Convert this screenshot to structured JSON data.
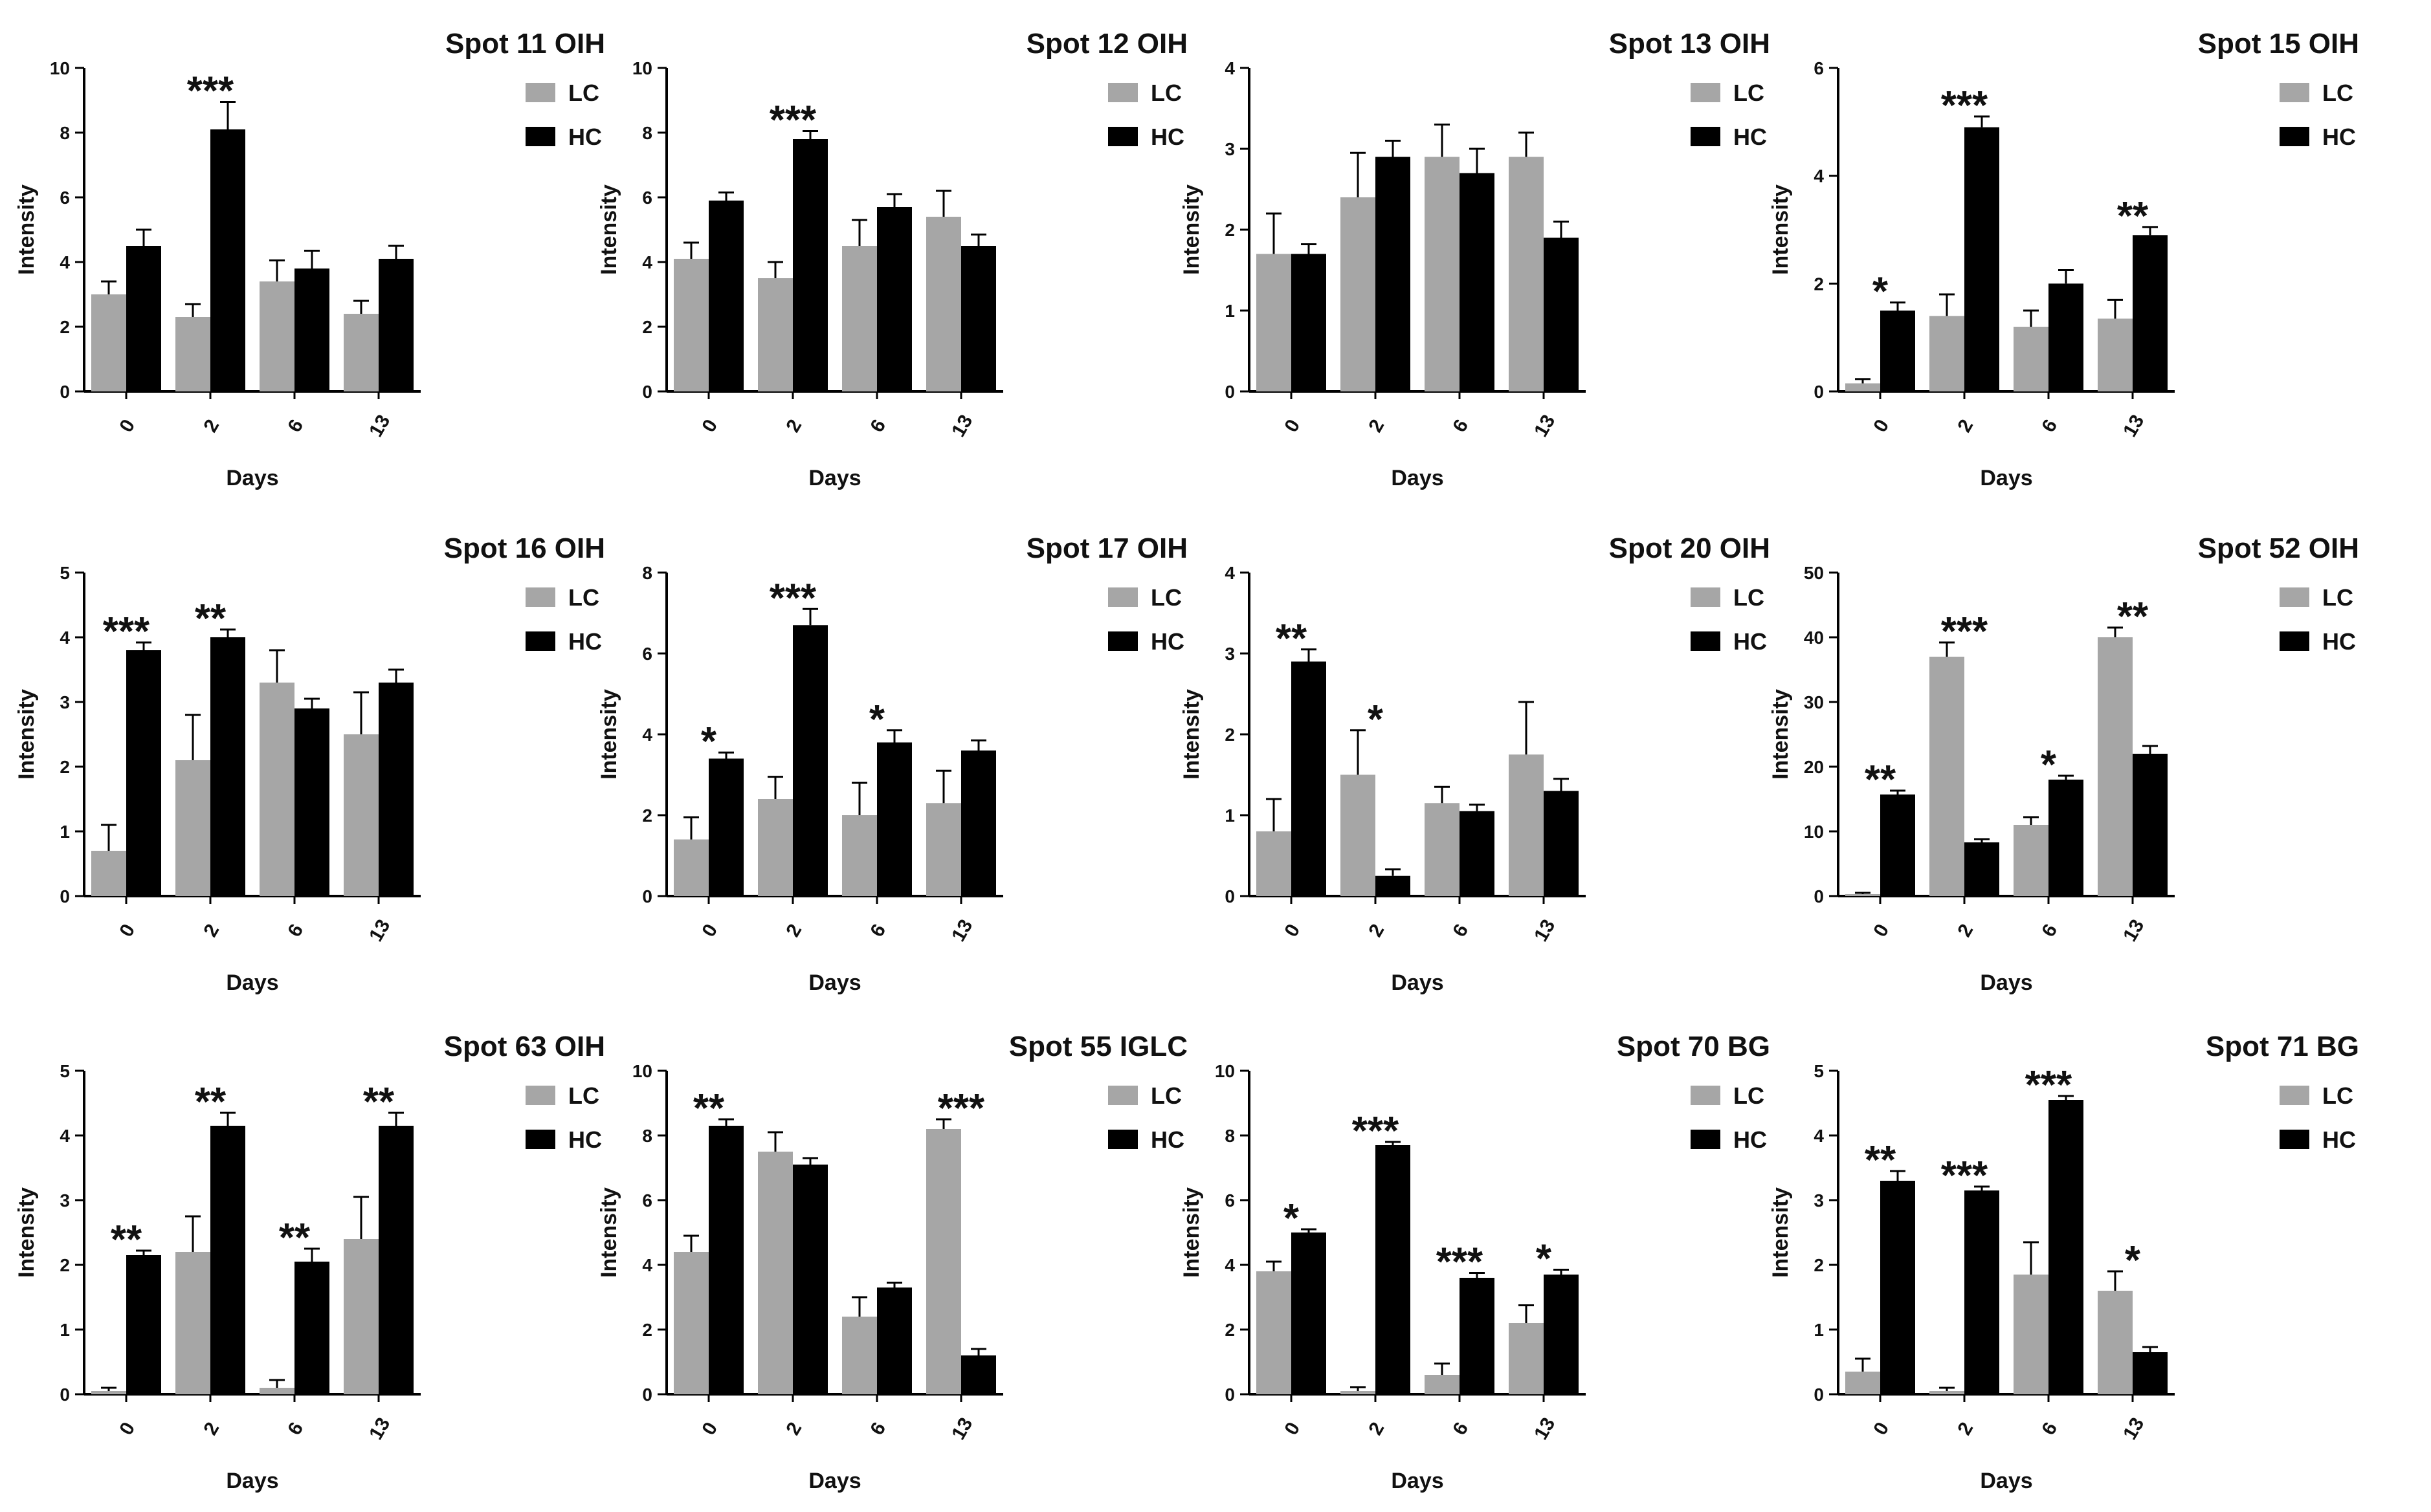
{
  "chart_data": [
    {
      "type": "bar",
      "title": "Spot 11 OIH",
      "xlabel": "Days",
      "ylabel": "Intensity",
      "categories": [
        "0",
        "2",
        "6",
        "13"
      ],
      "ylim": [
        0,
        10
      ],
      "yticks": [
        0,
        2,
        4,
        6,
        8,
        10
      ],
      "series": [
        {
          "name": "LC",
          "color": "#a6a6a6",
          "values": [
            3.0,
            2.3,
            3.4,
            2.4
          ],
          "errors": [
            0.4,
            0.4,
            0.65,
            0.4
          ]
        },
        {
          "name": "HC",
          "color": "#000000",
          "values": [
            4.5,
            8.1,
            3.8,
            4.1
          ],
          "errors": [
            0.5,
            0.85,
            0.55,
            0.4
          ]
        }
      ],
      "significance": [
        {
          "category": "2",
          "label": "***"
        }
      ]
    },
    {
      "type": "bar",
      "title": "Spot 12 OIH",
      "xlabel": "Days",
      "ylabel": "Intensity",
      "categories": [
        "0",
        "2",
        "6",
        "13"
      ],
      "ylim": [
        0,
        10
      ],
      "yticks": [
        0,
        2,
        4,
        6,
        8,
        10
      ],
      "series": [
        {
          "name": "LC",
          "color": "#a6a6a6",
          "values": [
            4.1,
            3.5,
            4.5,
            5.4
          ],
          "errors": [
            0.5,
            0.5,
            0.8,
            0.8
          ]
        },
        {
          "name": "HC",
          "color": "#000000",
          "values": [
            5.9,
            7.8,
            5.7,
            4.5
          ],
          "errors": [
            0.25,
            0.25,
            0.4,
            0.35
          ]
        }
      ],
      "significance": [
        {
          "category": "2",
          "label": "***"
        }
      ]
    },
    {
      "type": "bar",
      "title": "Spot 13 OIH",
      "xlabel": "Days",
      "ylabel": "Intensity",
      "categories": [
        "0",
        "2",
        "6",
        "13"
      ],
      "ylim": [
        0,
        4
      ],
      "yticks": [
        0,
        1,
        2,
        3,
        4
      ],
      "series": [
        {
          "name": "LC",
          "color": "#a6a6a6",
          "values": [
            1.7,
            2.4,
            2.9,
            2.9
          ],
          "errors": [
            0.5,
            0.55,
            0.4,
            0.3
          ]
        },
        {
          "name": "HC",
          "color": "#000000",
          "values": [
            1.7,
            2.9,
            2.7,
            1.9
          ],
          "errors": [
            0.12,
            0.2,
            0.3,
            0.2
          ]
        }
      ],
      "significance": []
    },
    {
      "type": "bar",
      "title": "Spot 15 OIH",
      "xlabel": "Days",
      "ylabel": "Intensity",
      "categories": [
        "0",
        "2",
        "6",
        "13"
      ],
      "ylim": [
        0,
        6
      ],
      "yticks": [
        0,
        2,
        4,
        6
      ],
      "series": [
        {
          "name": "LC",
          "color": "#a6a6a6",
          "values": [
            0.15,
            1.4,
            1.2,
            1.35
          ],
          "errors": [
            0.08,
            0.4,
            0.3,
            0.35
          ]
        },
        {
          "name": "HC",
          "color": "#000000",
          "values": [
            1.5,
            4.9,
            2.0,
            2.9
          ],
          "errors": [
            0.15,
            0.2,
            0.25,
            0.15
          ]
        }
      ],
      "significance": [
        {
          "category": "0",
          "label": "*"
        },
        {
          "category": "2",
          "label": "***"
        },
        {
          "category": "13",
          "label": "**"
        }
      ]
    },
    {
      "type": "bar",
      "title": "Spot 16 OIH",
      "xlabel": "Days",
      "ylabel": "Intensity",
      "categories": [
        "0",
        "2",
        "6",
        "13"
      ],
      "ylim": [
        0,
        5
      ],
      "yticks": [
        0,
        1,
        2,
        3,
        4,
        5
      ],
      "series": [
        {
          "name": "LC",
          "color": "#a6a6a6",
          "values": [
            0.7,
            2.1,
            3.3,
            2.5
          ],
          "errors": [
            0.4,
            0.7,
            0.5,
            0.65
          ]
        },
        {
          "name": "HC",
          "color": "#000000",
          "values": [
            3.8,
            4.0,
            2.9,
            3.3
          ],
          "errors": [
            0.12,
            0.12,
            0.15,
            0.2
          ]
        }
      ],
      "significance": [
        {
          "category": "0",
          "label": "***"
        },
        {
          "category": "2",
          "label": "**"
        }
      ]
    },
    {
      "type": "bar",
      "title": "Spot 17 OIH",
      "xlabel": "Days",
      "ylabel": "Intensity",
      "categories": [
        "0",
        "2",
        "6",
        "13"
      ],
      "ylim": [
        0,
        8
      ],
      "yticks": [
        0,
        2,
        4,
        6,
        8
      ],
      "series": [
        {
          "name": "LC",
          "color": "#a6a6a6",
          "values": [
            1.4,
            2.4,
            2.0,
            2.3
          ],
          "errors": [
            0.55,
            0.55,
            0.8,
            0.8
          ]
        },
        {
          "name": "HC",
          "color": "#000000",
          "values": [
            3.4,
            6.7,
            3.8,
            3.6
          ],
          "errors": [
            0.15,
            0.4,
            0.3,
            0.25
          ]
        }
      ],
      "significance": [
        {
          "category": "0",
          "label": "*"
        },
        {
          "category": "2",
          "label": "***"
        },
        {
          "category": "6",
          "label": "*"
        }
      ]
    },
    {
      "type": "bar",
      "title": "Spot 20 OIH",
      "xlabel": "Days",
      "ylabel": "Intensity",
      "categories": [
        "0",
        "2",
        "6",
        "13"
      ],
      "ylim": [
        0,
        4
      ],
      "yticks": [
        0,
        1,
        2,
        3,
        4
      ],
      "series": [
        {
          "name": "LC",
          "color": "#a6a6a6",
          "values": [
            0.8,
            1.5,
            1.15,
            1.75
          ],
          "errors": [
            0.4,
            0.55,
            0.2,
            0.65
          ]
        },
        {
          "name": "HC",
          "color": "#000000",
          "values": [
            2.9,
            0.25,
            1.05,
            1.3
          ],
          "errors": [
            0.15,
            0.08,
            0.08,
            0.15
          ]
        }
      ],
      "significance": [
        {
          "category": "0",
          "label": "**"
        },
        {
          "category": "2",
          "label": "*"
        }
      ]
    },
    {
      "type": "bar",
      "title": "Spot 52 OIH",
      "xlabel": "Days",
      "ylabel": "Intensity",
      "categories": [
        "0",
        "2",
        "6",
        "13"
      ],
      "ylim": [
        0,
        50
      ],
      "yticks": [
        0,
        10,
        20,
        30,
        40,
        50
      ],
      "series": [
        {
          "name": "LC",
          "color": "#a6a6a6",
          "values": [
            0.3,
            37,
            11,
            40
          ],
          "errors": [
            0.2,
            2.2,
            1.2,
            1.5
          ]
        },
        {
          "name": "HC",
          "color": "#000000",
          "values": [
            15.7,
            8.3,
            18,
            22
          ],
          "errors": [
            0.6,
            0.5,
            0.6,
            1.2
          ]
        }
      ],
      "significance": [
        {
          "category": "0",
          "label": "**"
        },
        {
          "category": "2",
          "label": "***"
        },
        {
          "category": "6",
          "label": "*"
        },
        {
          "category": "13",
          "label": "**"
        }
      ]
    },
    {
      "type": "bar",
      "title": "Spot 63 OIH",
      "xlabel": "Days",
      "ylabel": "Intensity",
      "categories": [
        "0",
        "2",
        "6",
        "13"
      ],
      "ylim": [
        0,
        5
      ],
      "yticks": [
        0,
        1,
        2,
        3,
        4,
        5
      ],
      "series": [
        {
          "name": "LC",
          "color": "#a6a6a6",
          "values": [
            0.05,
            2.2,
            0.1,
            2.4
          ],
          "errors": [
            0.05,
            0.55,
            0.12,
            0.65
          ]
        },
        {
          "name": "HC",
          "color": "#000000",
          "values": [
            2.15,
            4.15,
            2.05,
            4.15
          ],
          "errors": [
            0.07,
            0.2,
            0.2,
            0.2
          ]
        }
      ],
      "significance": [
        {
          "category": "0",
          "label": "**"
        },
        {
          "category": "2",
          "label": "**"
        },
        {
          "category": "6",
          "label": "**"
        },
        {
          "category": "13",
          "label": "**"
        }
      ]
    },
    {
      "type": "bar",
      "title": "Spot 55 IGLC",
      "xlabel": "Days",
      "ylabel": "Intensity",
      "categories": [
        "0",
        "2",
        "6",
        "13"
      ],
      "ylim": [
        0,
        10
      ],
      "yticks": [
        0,
        2,
        4,
        6,
        8,
        10
      ],
      "series": [
        {
          "name": "LC",
          "color": "#a6a6a6",
          "values": [
            4.4,
            7.5,
            2.4,
            8.2
          ],
          "errors": [
            0.5,
            0.6,
            0.6,
            0.3
          ]
        },
        {
          "name": "HC",
          "color": "#000000",
          "values": [
            8.3,
            7.1,
            3.3,
            1.2
          ],
          "errors": [
            0.2,
            0.2,
            0.15,
            0.2
          ]
        }
      ],
      "significance": [
        {
          "category": "0",
          "label": "**"
        },
        {
          "category": "13",
          "label": "***"
        }
      ]
    },
    {
      "type": "bar",
      "title": "Spot 70 BG",
      "xlabel": "Days",
      "ylabel": "Intensity",
      "categories": [
        "0",
        "2",
        "6",
        "13"
      ],
      "ylim": [
        0,
        10
      ],
      "yticks": [
        0,
        2,
        4,
        6,
        8,
        10
      ],
      "series": [
        {
          "name": "LC",
          "color": "#a6a6a6",
          "values": [
            3.8,
            0.1,
            0.6,
            2.2
          ],
          "errors": [
            0.3,
            0.12,
            0.35,
            0.55
          ]
        },
        {
          "name": "HC",
          "color": "#000000",
          "values": [
            5.0,
            7.7,
            3.6,
            3.7
          ],
          "errors": [
            0.1,
            0.1,
            0.15,
            0.15
          ]
        }
      ],
      "significance": [
        {
          "category": "0",
          "label": "*"
        },
        {
          "category": "2",
          "label": "***"
        },
        {
          "category": "6",
          "label": "***"
        },
        {
          "category": "13",
          "label": "*"
        }
      ]
    },
    {
      "type": "bar",
      "title": "Spot 71 BG",
      "xlabel": "Days",
      "ylabel": "Intensity",
      "categories": [
        "0",
        "2",
        "6",
        "13"
      ],
      "ylim": [
        0,
        5
      ],
      "yticks": [
        0,
        1,
        2,
        3,
        4,
        5
      ],
      "series": [
        {
          "name": "LC",
          "color": "#a6a6a6",
          "values": [
            0.35,
            0.05,
            1.85,
            1.6
          ],
          "errors": [
            0.2,
            0.05,
            0.5,
            0.3
          ]
        },
        {
          "name": "HC",
          "color": "#000000",
          "values": [
            3.3,
            3.15,
            4.55,
            0.65
          ],
          "errors": [
            0.15,
            0.06,
            0.06,
            0.08
          ]
        }
      ],
      "significance": [
        {
          "category": "0",
          "label": "**"
        },
        {
          "category": "2",
          "label": "***"
        },
        {
          "category": "6",
          "label": "***"
        },
        {
          "category": "13",
          "label": "*"
        }
      ]
    }
  ]
}
